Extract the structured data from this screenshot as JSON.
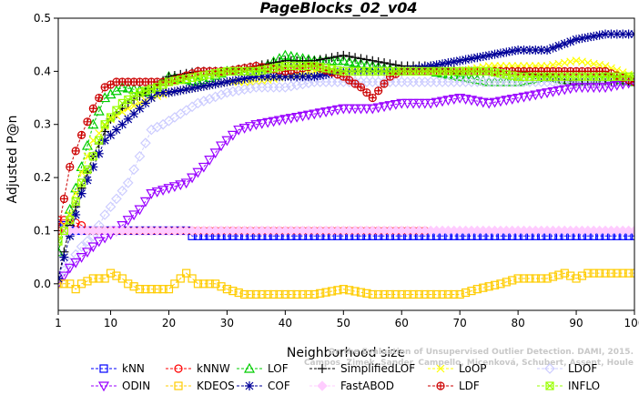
{
  "chart_data": {
    "type": "line",
    "title": "PageBlocks_02_v04",
    "xlabel": "Neighborhood size",
    "ylabel": "Adjusted P@n",
    "xlim": [
      1,
      100
    ],
    "ylim": [
      -0.05,
      0.5
    ],
    "x_ticks": [
      1,
      10,
      20,
      30,
      40,
      50,
      60,
      70,
      80,
      90,
      100
    ],
    "y_ticks": [
      0.0,
      0.1,
      0.2,
      0.3,
      0.4,
      0.5
    ],
    "y_tick_labels": [
      "0.0",
      "0.1",
      "0.2",
      "0.3",
      "0.4",
      "0.5"
    ],
    "grid": false,
    "legend_position": "bottom",
    "watermark": [
      "Campos, Zimek, Sander, Campello, Micenková, Schubert, Assent, Houle",
      "On the Evaluation of Unsupervised Outlier Detection. DAMI, 2015."
    ],
    "series": [
      {
        "name": "kNN",
        "color": "#0000ff",
        "marker": "square",
        "points": [
          [
            1,
            0.11
          ],
          [
            3,
            0.11
          ],
          [
            4,
            0.1
          ],
          [
            23,
            0.1
          ],
          [
            24,
            0.09
          ],
          [
            100,
            0.09
          ]
        ]
      },
      {
        "name": "kNNW",
        "color": "#ff0000",
        "marker": "circle",
        "points": [
          [
            1,
            0.12
          ],
          [
            3,
            0.12
          ],
          [
            5,
            0.11
          ],
          [
            6,
            0.1
          ],
          [
            64,
            0.1
          ]
        ]
      },
      {
        "name": "LOF",
        "color": "#00cc00",
        "marker": "triangle-up",
        "points": [
          [
            1,
            0.06
          ],
          [
            3,
            0.14
          ],
          [
            5,
            0.22
          ],
          [
            7,
            0.3
          ],
          [
            9,
            0.35
          ],
          [
            12,
            0.37
          ],
          [
            17,
            0.36
          ],
          [
            20,
            0.39
          ],
          [
            25,
            0.38
          ],
          [
            30,
            0.4
          ],
          [
            35,
            0.4
          ],
          [
            40,
            0.43
          ],
          [
            45,
            0.42
          ],
          [
            50,
            0.42
          ],
          [
            55,
            0.41
          ],
          [
            60,
            0.4
          ],
          [
            65,
            0.4
          ],
          [
            70,
            0.39
          ],
          [
            75,
            0.38
          ],
          [
            80,
            0.38
          ],
          [
            85,
            0.39
          ],
          [
            90,
            0.38
          ],
          [
            95,
            0.39
          ],
          [
            100,
            0.38
          ]
        ]
      },
      {
        "name": "SimplifiedLOF",
        "color": "#000000",
        "marker": "plus",
        "points": [
          [
            1,
            0.01
          ],
          [
            3,
            0.11
          ],
          [
            5,
            0.18
          ],
          [
            7,
            0.24
          ],
          [
            10,
            0.31
          ],
          [
            13,
            0.34
          ],
          [
            16,
            0.36
          ],
          [
            20,
            0.39
          ],
          [
            25,
            0.4
          ],
          [
            30,
            0.4
          ],
          [
            35,
            0.41
          ],
          [
            40,
            0.42
          ],
          [
            45,
            0.42
          ],
          [
            50,
            0.43
          ],
          [
            55,
            0.42
          ],
          [
            60,
            0.41
          ],
          [
            65,
            0.41
          ],
          [
            70,
            0.4
          ],
          [
            75,
            0.4
          ],
          [
            80,
            0.4
          ],
          [
            85,
            0.39
          ],
          [
            90,
            0.38
          ],
          [
            95,
            0.38
          ],
          [
            100,
            0.38
          ]
        ]
      },
      {
        "name": "LoOP",
        "color": "#ffff00",
        "marker": "x",
        "points": [
          [
            1,
            0.09
          ],
          [
            3,
            0.13
          ],
          [
            5,
            0.21
          ],
          [
            7,
            0.27
          ],
          [
            10,
            0.31
          ],
          [
            13,
            0.33
          ],
          [
            17,
            0.35
          ],
          [
            20,
            0.36
          ],
          [
            25,
            0.37
          ],
          [
            30,
            0.38
          ],
          [
            35,
            0.38
          ],
          [
            40,
            0.39
          ],
          [
            45,
            0.4
          ],
          [
            50,
            0.4
          ],
          [
            55,
            0.4
          ],
          [
            60,
            0.4
          ],
          [
            65,
            0.4
          ],
          [
            70,
            0.4
          ],
          [
            75,
            0.41
          ],
          [
            80,
            0.41
          ],
          [
            85,
            0.41
          ],
          [
            90,
            0.42
          ],
          [
            95,
            0.41
          ],
          [
            100,
            0.39
          ]
        ]
      },
      {
        "name": "LDOF",
        "color": "#ccccff",
        "marker": "diamond",
        "points": [
          [
            1,
            0.01
          ],
          [
            3,
            0.04
          ],
          [
            5,
            0.07
          ],
          [
            7,
            0.09
          ],
          [
            9,
            0.13
          ],
          [
            11,
            0.16
          ],
          [
            13,
            0.19
          ],
          [
            15,
            0.24
          ],
          [
            17,
            0.29
          ],
          [
            19,
            0.3
          ],
          [
            22,
            0.32
          ],
          [
            25,
            0.34
          ],
          [
            30,
            0.36
          ],
          [
            35,
            0.37
          ],
          [
            40,
            0.37
          ],
          [
            45,
            0.38
          ],
          [
            50,
            0.38
          ],
          [
            55,
            0.38
          ],
          [
            60,
            0.38
          ],
          [
            65,
            0.38
          ],
          [
            70,
            0.38
          ],
          [
            75,
            0.38
          ],
          [
            80,
            0.38
          ],
          [
            85,
            0.38
          ],
          [
            90,
            0.38
          ],
          [
            95,
            0.38
          ],
          [
            100,
            0.38
          ]
        ]
      },
      {
        "name": "ODIN",
        "color": "#9900ff",
        "marker": "triangle-down",
        "points": [
          [
            1,
            0.0
          ],
          [
            3,
            0.03
          ],
          [
            5,
            0.05
          ],
          [
            8,
            0.08
          ],
          [
            11,
            0.1
          ],
          [
            13,
            0.12
          ],
          [
            15,
            0.14
          ],
          [
            17,
            0.17
          ],
          [
            20,
            0.18
          ],
          [
            23,
            0.19
          ],
          [
            26,
            0.22
          ],
          [
            29,
            0.26
          ],
          [
            32,
            0.29
          ],
          [
            35,
            0.3
          ],
          [
            40,
            0.31
          ],
          [
            45,
            0.32
          ],
          [
            50,
            0.33
          ],
          [
            55,
            0.33
          ],
          [
            60,
            0.34
          ],
          [
            65,
            0.34
          ],
          [
            70,
            0.35
          ],
          [
            75,
            0.34
          ],
          [
            80,
            0.35
          ],
          [
            85,
            0.36
          ],
          [
            90,
            0.37
          ],
          [
            95,
            0.37
          ],
          [
            100,
            0.38
          ]
        ]
      },
      {
        "name": "KDEOS",
        "color": "#ffcc00",
        "marker": "square",
        "points": [
          [
            1,
            0.0
          ],
          [
            3,
            0.0
          ],
          [
            4,
            -0.01
          ],
          [
            5,
            0.0
          ],
          [
            7,
            0.01
          ],
          [
            9,
            0.01
          ],
          [
            10,
            0.02
          ],
          [
            12,
            0.01
          ],
          [
            13,
            0.0
          ],
          [
            15,
            -0.01
          ],
          [
            20,
            -0.01
          ],
          [
            22,
            0.01
          ],
          [
            23,
            0.02
          ],
          [
            25,
            0.0
          ],
          [
            28,
            0.0
          ],
          [
            30,
            -0.01
          ],
          [
            33,
            -0.02
          ],
          [
            40,
            -0.02
          ],
          [
            45,
            -0.02
          ],
          [
            50,
            -0.01
          ],
          [
            55,
            -0.02
          ],
          [
            60,
            -0.02
          ],
          [
            65,
            -0.02
          ],
          [
            70,
            -0.02
          ],
          [
            73,
            -0.01
          ],
          [
            77,
            0.0
          ],
          [
            80,
            0.01
          ],
          [
            85,
            0.01
          ],
          [
            88,
            0.02
          ],
          [
            90,
            0.01
          ],
          [
            92,
            0.02
          ],
          [
            95,
            0.02
          ],
          [
            100,
            0.02
          ]
        ]
      },
      {
        "name": "COF",
        "color": "#000099",
        "marker": "asterisk",
        "points": [
          [
            1,
            0.01
          ],
          [
            3,
            0.09
          ],
          [
            5,
            0.17
          ],
          [
            7,
            0.22
          ],
          [
            9,
            0.27
          ],
          [
            12,
            0.3
          ],
          [
            15,
            0.33
          ],
          [
            18,
            0.36
          ],
          [
            20,
            0.36
          ],
          [
            25,
            0.37
          ],
          [
            30,
            0.38
          ],
          [
            35,
            0.39
          ],
          [
            40,
            0.39
          ],
          [
            45,
            0.39
          ],
          [
            50,
            0.4
          ],
          [
            55,
            0.4
          ],
          [
            60,
            0.4
          ],
          [
            65,
            0.41
          ],
          [
            70,
            0.42
          ],
          [
            75,
            0.43
          ],
          [
            80,
            0.44
          ],
          [
            85,
            0.44
          ],
          [
            90,
            0.46
          ],
          [
            95,
            0.47
          ],
          [
            100,
            0.47
          ]
        ]
      },
      {
        "name": "FastABOD",
        "color": "#ffccff",
        "marker": "diamond-filled",
        "points": [
          [
            1,
            0.1
          ],
          [
            10,
            0.1
          ],
          [
            20,
            0.1
          ],
          [
            30,
            0.1
          ],
          [
            40,
            0.1
          ],
          [
            50,
            0.1
          ],
          [
            60,
            0.1
          ],
          [
            70,
            0.1
          ],
          [
            80,
            0.1
          ],
          [
            90,
            0.1
          ],
          [
            100,
            0.1
          ]
        ]
      },
      {
        "name": "LDF",
        "color": "#cc0000",
        "marker": "circle-plus",
        "points": [
          [
            1,
            0.1
          ],
          [
            3,
            0.22
          ],
          [
            5,
            0.28
          ],
          [
            7,
            0.33
          ],
          [
            9,
            0.37
          ],
          [
            11,
            0.38
          ],
          [
            13,
            0.38
          ],
          [
            16,
            0.38
          ],
          [
            20,
            0.38
          ],
          [
            25,
            0.4
          ],
          [
            30,
            0.4
          ],
          [
            35,
            0.41
          ],
          [
            40,
            0.4
          ],
          [
            45,
            0.41
          ],
          [
            50,
            0.39
          ],
          [
            53,
            0.37
          ],
          [
            55,
            0.35
          ],
          [
            58,
            0.39
          ],
          [
            60,
            0.4
          ],
          [
            65,
            0.4
          ],
          [
            70,
            0.4
          ],
          [
            75,
            0.4
          ],
          [
            80,
            0.4
          ],
          [
            85,
            0.4
          ],
          [
            90,
            0.4
          ],
          [
            95,
            0.4
          ],
          [
            100,
            0.38
          ]
        ]
      },
      {
        "name": "INFLO",
        "color": "#99ff00",
        "marker": "square-x",
        "points": [
          [
            1,
            0.08
          ],
          [
            3,
            0.12
          ],
          [
            5,
            0.19
          ],
          [
            7,
            0.24
          ],
          [
            9,
            0.3
          ],
          [
            12,
            0.34
          ],
          [
            15,
            0.36
          ],
          [
            18,
            0.37
          ],
          [
            20,
            0.38
          ],
          [
            25,
            0.39
          ],
          [
            30,
            0.4
          ],
          [
            35,
            0.4
          ],
          [
            40,
            0.41
          ],
          [
            45,
            0.41
          ],
          [
            50,
            0.4
          ],
          [
            55,
            0.4
          ],
          [
            60,
            0.4
          ],
          [
            65,
            0.4
          ],
          [
            70,
            0.4
          ],
          [
            75,
            0.4
          ],
          [
            80,
            0.39
          ],
          [
            85,
            0.39
          ],
          [
            90,
            0.39
          ],
          [
            95,
            0.39
          ],
          [
            100,
            0.39
          ]
        ]
      }
    ],
    "legend_rows": [
      [
        "kNN",
        "kNNW",
        "LOF",
        "SimplifiedLOF",
        "LoOP",
        "LDOF"
      ],
      [
        "ODIN",
        "KDEOS",
        "COF",
        "FastABOD",
        "LDF",
        "INFLO"
      ]
    ]
  }
}
